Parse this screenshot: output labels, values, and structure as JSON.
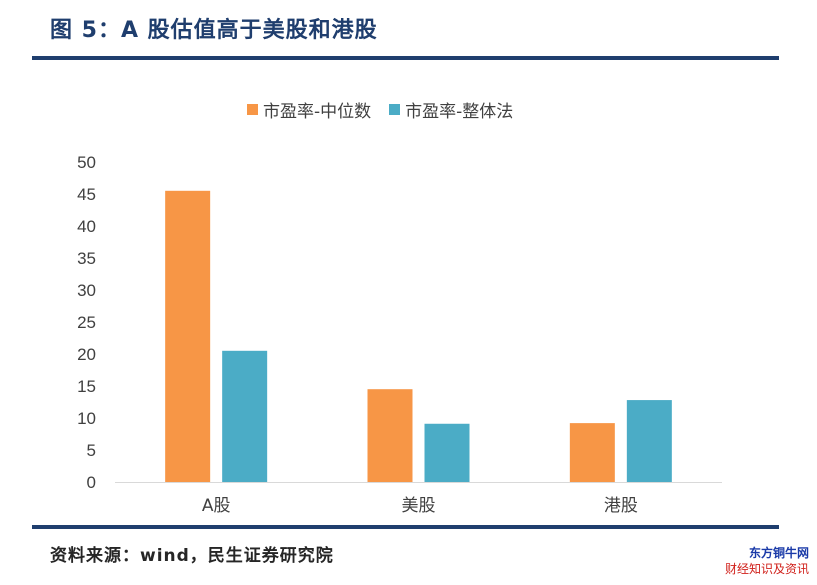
{
  "figure": {
    "title": "图 5：A 股估值高于美股和港股",
    "source": "资料来源：wind，民生证券研究院"
  },
  "watermark": {
    "line1": "东方铜牛网",
    "line2": "财经知识及资讯"
  },
  "chart_data": {
    "type": "bar",
    "title": "",
    "xlabel": "",
    "ylabel": "",
    "categories": [
      "A股",
      "美股",
      "港股"
    ],
    "series": [
      {
        "name": "市盈率-中位数",
        "values": [
          45.5,
          14.5,
          9.2
        ],
        "color": "#f79646"
      },
      {
        "name": "市盈率-整体法",
        "values": [
          20.5,
          9.1,
          12.8
        ],
        "color": "#4bacc6"
      }
    ],
    "ylim": [
      0,
      50
    ],
    "yticks": [
      0,
      5,
      10,
      15,
      20,
      25,
      30,
      35,
      40,
      45,
      50
    ],
    "grid": false,
    "legend_position": "top-center"
  }
}
